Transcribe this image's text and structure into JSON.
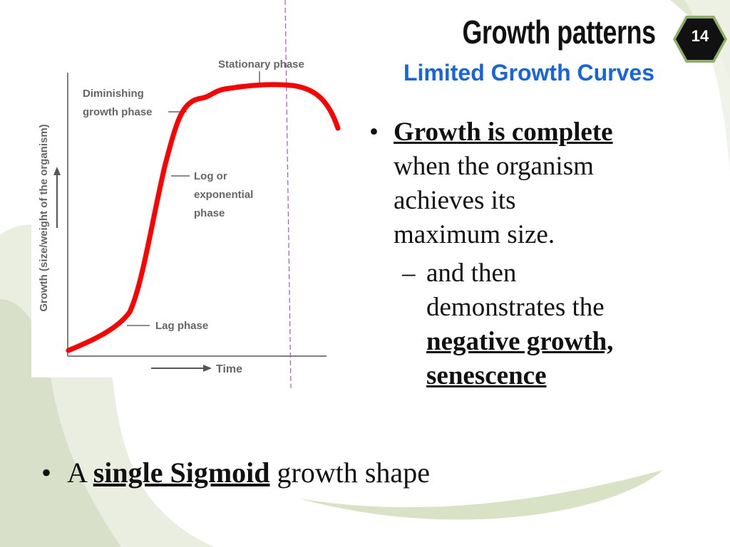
{
  "header": {
    "title": "Growth patterns",
    "subtitle": "Limited Growth Curves",
    "slide_number": "14"
  },
  "figure": {
    "y_axis_label": "Growth (size/weight of the organism)",
    "x_axis_label": "Time",
    "phase_labels": {
      "stationary": "Stationary phase",
      "diminishing_line1": "Diminishing",
      "diminishing_line2": "growth phase",
      "log_line1": "Log or",
      "log_line2": "exponential",
      "log_line3": "phase",
      "lag": "Lag phase"
    }
  },
  "bullets": {
    "point1_bold": "Growth is complete",
    "point1_lines": [
      "when the organism",
      "achieves its",
      "maximum size."
    ],
    "sub_dash": "–",
    "sub_lines": [
      "and then",
      "demonstrates the"
    ],
    "sub_bold_lines": [
      "negative growth,",
      "senescence"
    ],
    "marker": "•"
  },
  "bottom": {
    "marker": "•",
    "prefix": "A",
    "bold": "single Sigmoid",
    "suffix": "growth shape"
  },
  "colors": {
    "curve": "#ff0000",
    "subtitle": "#1565e0",
    "accent_green": "#8fae6a",
    "badge": "#111111"
  }
}
